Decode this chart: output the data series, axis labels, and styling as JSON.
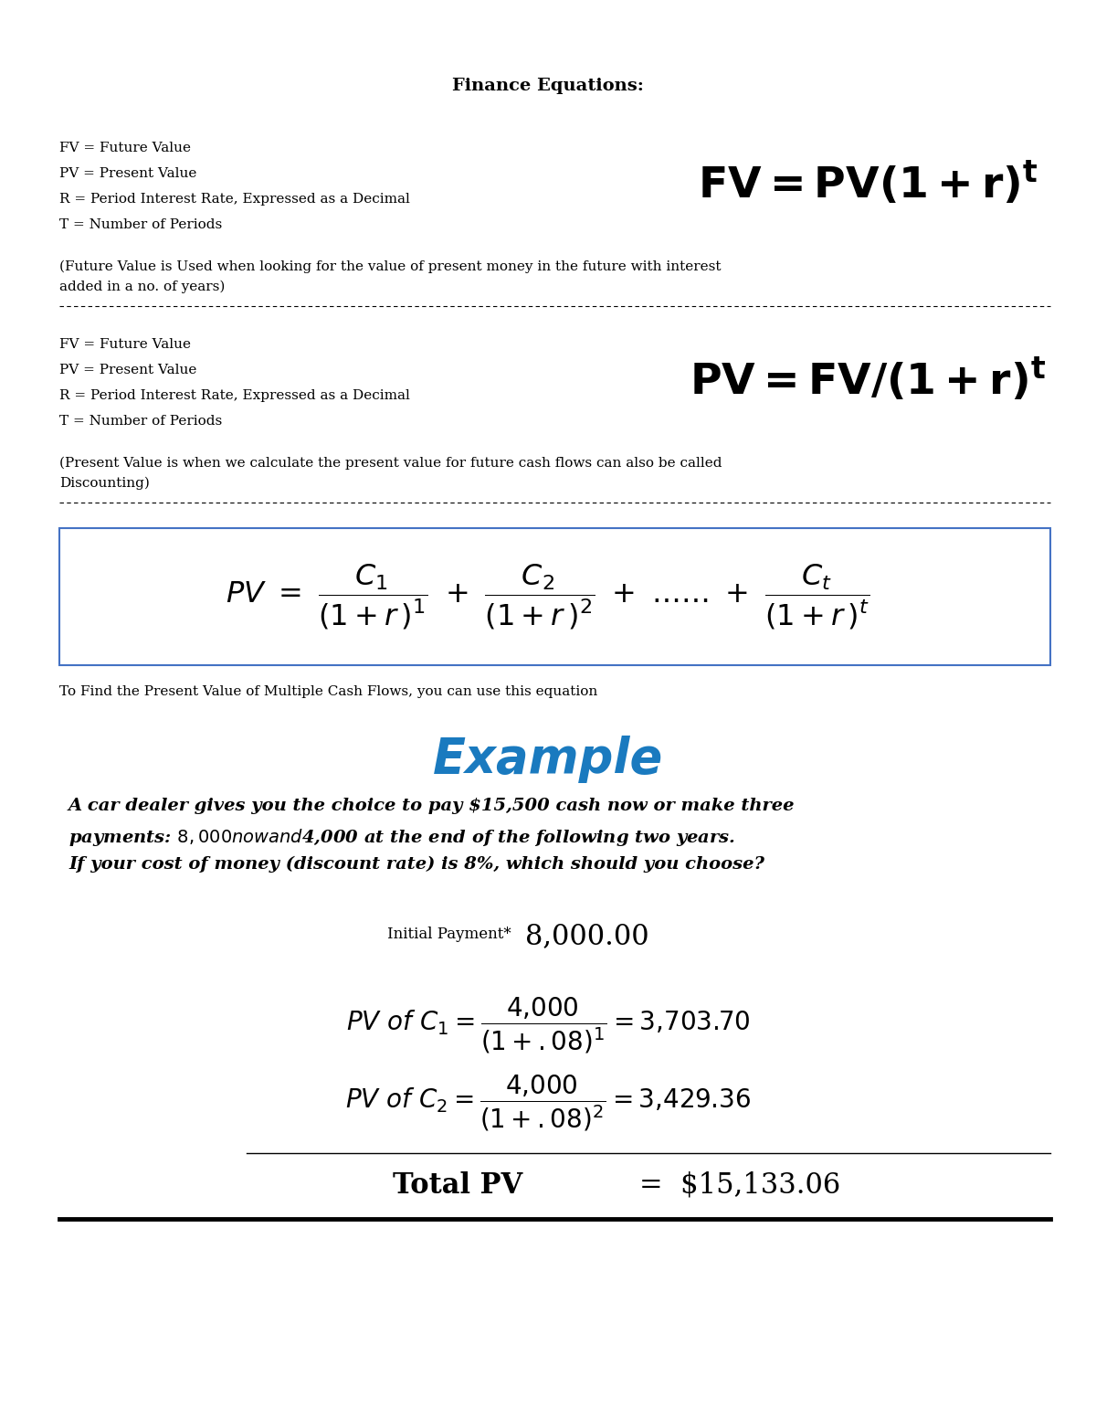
{
  "title": "Finance Equations:",
  "bg_color": "#ffffff",
  "section1_vars": [
    "FV = Future Value",
    "PV = Present Value",
    "R = Period Interest Rate, Expressed as a Decimal",
    "T = Number of Periods"
  ],
  "section1_desc1": "(Future Value is Used when looking for the value of present money in the future with interest",
  "section1_desc2": "added in a no. of years)",
  "section2_vars": [
    "FV = Future Value",
    "PV = Present Value",
    "R = Period Interest Rate, Expressed as a Decimal",
    "T = Number of Periods"
  ],
  "section2_desc1": "(Present Value is when we calculate the present value for future cash flows can also be called",
  "section2_desc2": "Discounting)",
  "section3_desc": "To Find the Present Value of Multiple Cash Flows, you can use this equation",
  "example_title": "Example",
  "example_title_color": "#1a7abf",
  "example_line1": "A car dealer gives you the choice to pay $15,500 cash now or make three",
  "example_line2": "payments: $8,000 now and $4,000 at the end of the following two years.",
  "example_line3": "If your cost of money (discount rate) is 8%, which should you choose?",
  "box_edge_color": "#4472C4",
  "small_font": 11,
  "var_font": 11,
  "desc_font": 11,
  "big_eq_font": 34,
  "example_title_font": 38,
  "example_text_font": 14,
  "calc_font": 20,
  "total_font": 22
}
